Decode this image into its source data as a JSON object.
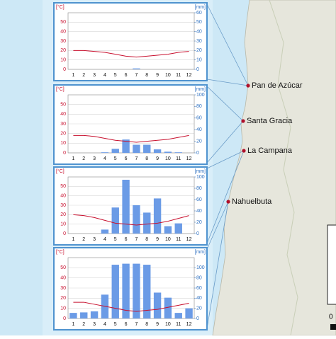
{
  "chart_data": [
    {
      "type": "combo",
      "y_label": "[°C]",
      "y2_label": "[mm]",
      "categories": [
        "1",
        "2",
        "3",
        "4",
        "5",
        "6",
        "7",
        "8",
        "9",
        "10",
        "11",
        "12"
      ],
      "ylim": [
        0,
        60
      ],
      "yticks": [
        0,
        10,
        20,
        30,
        40,
        50
      ],
      "y2lim": [
        0,
        60
      ],
      "y2ticks": [
        0,
        10,
        20,
        30,
        40,
        50,
        60
      ],
      "grid": true,
      "series": [
        {
          "mark": "line",
          "color": "#c8102e",
          "values": [
            20,
            20,
            19,
            18,
            16,
            14,
            13,
            14,
            15,
            16,
            18,
            19
          ]
        },
        {
          "mark": "bar",
          "axis": "y2",
          "color": "#6b9be6",
          "values": [
            0,
            0,
            0,
            0,
            0,
            0,
            1,
            0,
            0,
            0,
            0,
            0
          ]
        }
      ]
    },
    {
      "type": "combo",
      "y_label": "[°C]",
      "y2_label": "[mm]",
      "categories": [
        "1",
        "2",
        "3",
        "4",
        "5",
        "6",
        "7",
        "8",
        "9",
        "10",
        "11",
        "12"
      ],
      "ylim": [
        0,
        60
      ],
      "yticks": [
        0,
        10,
        20,
        30,
        40,
        50
      ],
      "y2lim": [
        0,
        100
      ],
      "y2ticks": [
        0,
        20,
        40,
        60,
        80,
        100
      ],
      "grid": true,
      "series": [
        {
          "mark": "line",
          "color": "#c8102e",
          "values": [
            18,
            18,
            17,
            15,
            13,
            12,
            11,
            12,
            13,
            14,
            16,
            18
          ]
        },
        {
          "mark": "bar",
          "axis": "y2",
          "color": "#6b9be6",
          "values": [
            0,
            0,
            0,
            1,
            7,
            23,
            14,
            14,
            6,
            2,
            1,
            0
          ]
        }
      ]
    },
    {
      "type": "combo",
      "y_label": "[°C]",
      "y2_label": "[mm]",
      "categories": [
        "1",
        "2",
        "3",
        "4",
        "5",
        "6",
        "7",
        "8",
        "9",
        "10",
        "11",
        "12"
      ],
      "ylim": [
        0,
        60
      ],
      "yticks": [
        0,
        10,
        20,
        30,
        40,
        50
      ],
      "y2lim": [
        0,
        100
      ],
      "y2ticks": [
        0,
        20,
        40,
        60,
        80,
        100
      ],
      "grid": true,
      "series": [
        {
          "mark": "line",
          "color": "#c8102e",
          "values": [
            20,
            19,
            17,
            14,
            11,
            10,
            9,
            10,
            11,
            13,
            16,
            19
          ]
        },
        {
          "mark": "bar",
          "axis": "y2",
          "color": "#6b9be6",
          "values": [
            0,
            0,
            0,
            7,
            46,
            95,
            50,
            37,
            62,
            13,
            18,
            0
          ]
        }
      ]
    },
    {
      "type": "combo",
      "y_label": "[°C]",
      "y2_label": "[mm]",
      "categories": [
        "1",
        "2",
        "3",
        "4",
        "5",
        "6",
        "7",
        "8",
        "9",
        "10",
        "11",
        "12"
      ],
      "ylim": [
        0,
        60
      ],
      "yticks": [
        0,
        10,
        20,
        30,
        40,
        50
      ],
      "y2lim": [
        0,
        120
      ],
      "y2ticks": [
        0,
        20,
        40,
        60,
        80,
        100
      ],
      "grid": true,
      "series": [
        {
          "mark": "line",
          "color": "#c8102e",
          "values": [
            16,
            16,
            14,
            12,
            10,
            8,
            7,
            8,
            9,
            11,
            13,
            15
          ]
        },
        {
          "mark": "bar",
          "axis": "y2",
          "color": "#6b9be6",
          "values": [
            11,
            12,
            14,
            47,
            106,
            108,
            108,
            106,
            51,
            41,
            11,
            20
          ]
        }
      ]
    }
  ],
  "map": {
    "sites": [
      "Pan de Azúcar",
      "Santa Gracia",
      "La Campana",
      "Nahuelbuta"
    ],
    "scale_label": "0"
  }
}
